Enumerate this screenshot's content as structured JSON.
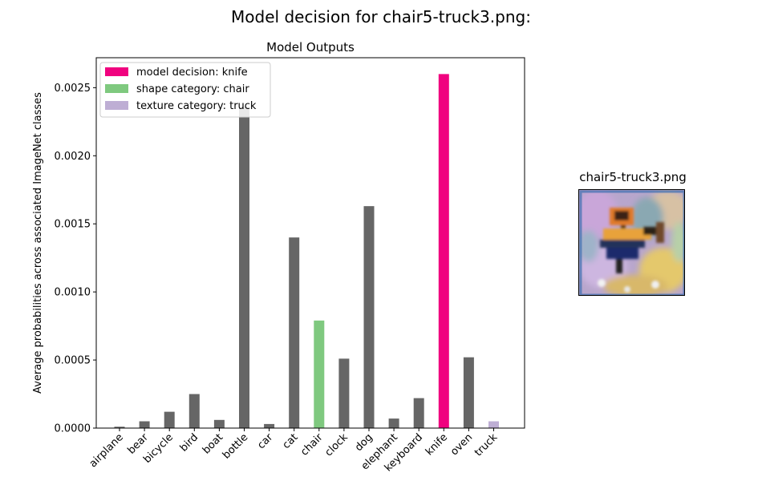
{
  "figure": {
    "suptitle": "Model decision for chair5-truck3.png:",
    "thumbnail_title": "chair5-truck3.png"
  },
  "colors": {
    "default_bar": "#666666",
    "decision": "#f0027f",
    "shape": "#7fc97f",
    "texture": "#beaed4"
  },
  "chart_data": {
    "type": "bar",
    "title": "Model Outputs",
    "xlabel": "",
    "ylabel": "Average probabilities across associated ImageNet classes",
    "ylim": [
      0,
      0.00272
    ],
    "yticks": [
      0.0,
      0.0005,
      0.001,
      0.0015,
      0.002,
      0.0025
    ],
    "ytick_labels": [
      "0.0000",
      "0.0005",
      "0.0010",
      "0.0015",
      "0.0020",
      "0.0025"
    ],
    "categories": [
      "airplane",
      "bear",
      "bicycle",
      "bird",
      "boat",
      "bottle",
      "car",
      "cat",
      "chair",
      "clock",
      "dog",
      "elephant",
      "keyboard",
      "knife",
      "oven",
      "truck"
    ],
    "values": [
      1e-05,
      5e-05,
      0.00012,
      0.00025,
      6e-05,
      0.00236,
      3e-05,
      0.0014,
      0.00079,
      0.00051,
      0.00163,
      7e-05,
      0.00022,
      0.0026,
      0.00052,
      5e-05
    ],
    "highlights": {
      "knife": "decision",
      "chair": "shape",
      "truck": "texture"
    },
    "legend": {
      "position": "top-left",
      "entries": [
        {
          "label": "model decision: knife",
          "role": "decision"
        },
        {
          "label": "shape category: chair",
          "role": "shape"
        },
        {
          "label": "texture category: truck",
          "role": "texture"
        }
      ]
    },
    "grid": false
  }
}
